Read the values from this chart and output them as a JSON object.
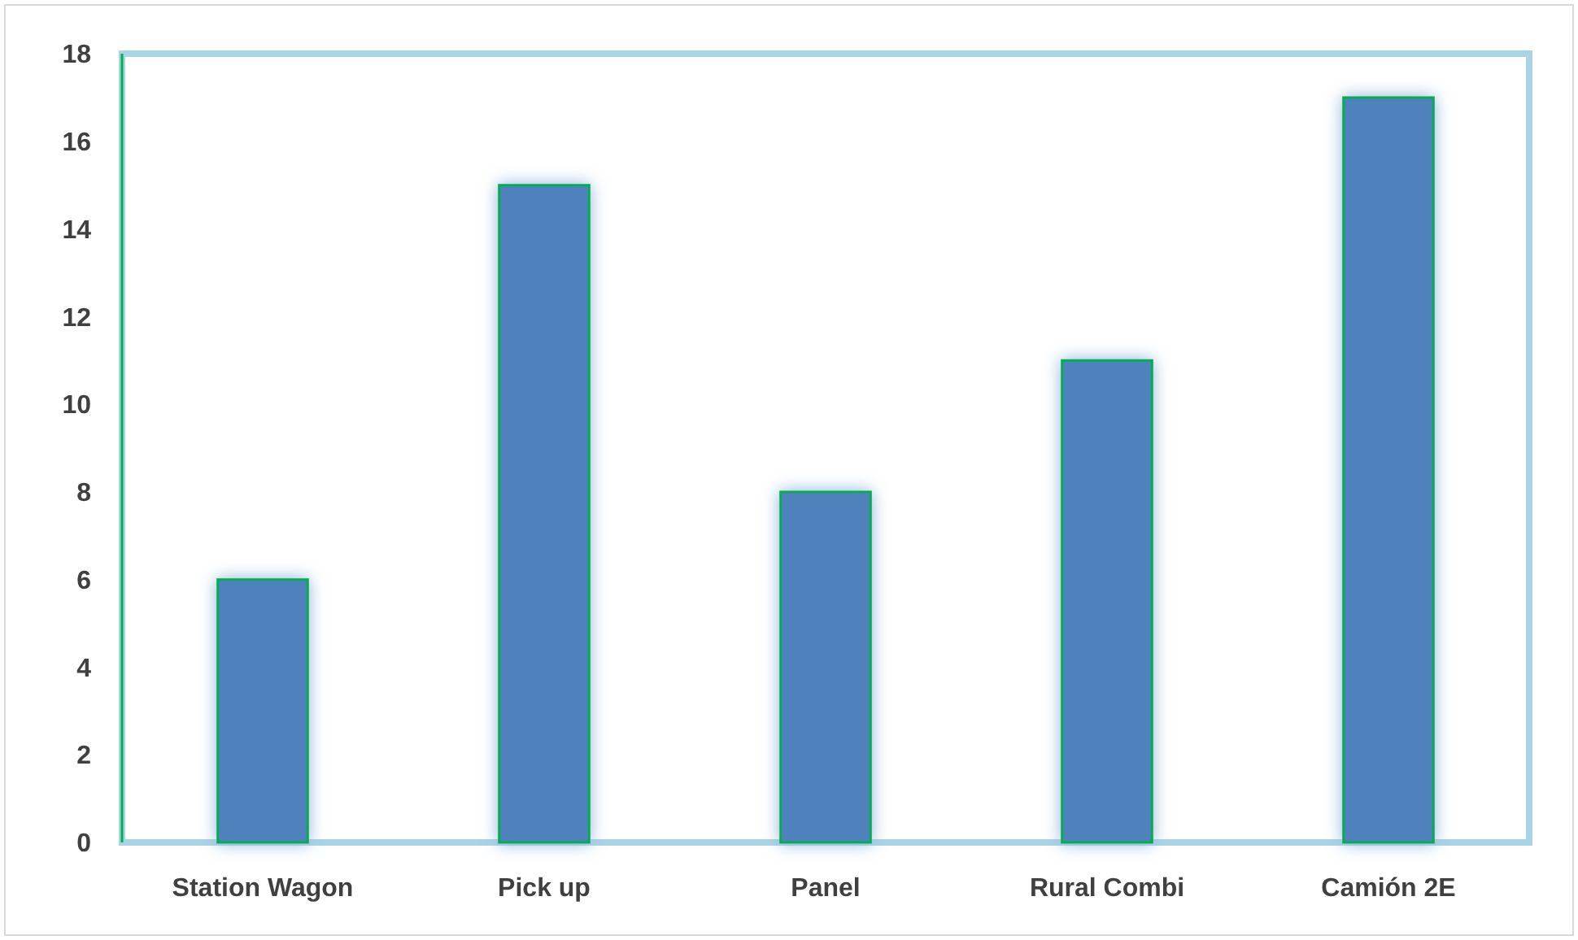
{
  "chart_data": {
    "type": "bar",
    "categories": [
      "Station Wagon",
      "Pick up",
      "Panel",
      "Rural Combi",
      "Camión 2E"
    ],
    "values": [
      6,
      15,
      8,
      11,
      17
    ],
    "color": "#4f81bd",
    "ylim": [
      0,
      18
    ],
    "yticks": [
      0,
      2,
      4,
      6,
      8,
      10,
      12,
      14,
      16,
      18
    ],
    "grid": false
  }
}
